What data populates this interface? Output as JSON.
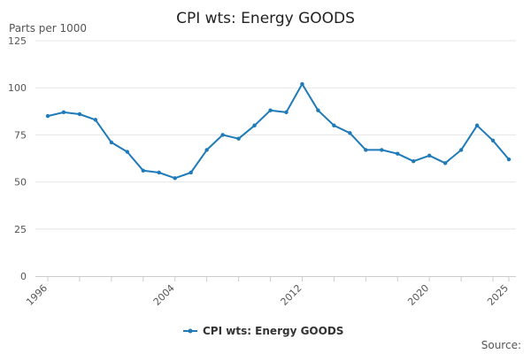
{
  "chart_data": {
    "type": "line",
    "title": "CPI wts: Energy GOODS",
    "ylabel": "Parts per 1000",
    "xlabel": "",
    "ylim": [
      0,
      125
    ],
    "yticks": [
      0,
      25,
      50,
      75,
      100,
      125
    ],
    "xlim": [
      1996,
      2025
    ],
    "xtick_labels": [
      1996,
      2004,
      2012,
      2020,
      2025
    ],
    "grid": true,
    "legend_position": "bottom",
    "series": [
      {
        "name": "CPI wts: Energy GOODS",
        "color": "#1f7ab8",
        "x": [
          1996,
          1997,
          1998,
          1999,
          2000,
          2001,
          2002,
          2003,
          2004,
          2005,
          2006,
          2007,
          2008,
          2009,
          2010,
          2011,
          2012,
          2013,
          2014,
          2015,
          2016,
          2017,
          2018,
          2019,
          2020,
          2021,
          2022,
          2023,
          2024,
          2025
        ],
        "values": [
          85,
          87,
          86,
          83,
          71,
          66,
          56,
          55,
          52,
          55,
          67,
          75,
          73,
          80,
          88,
          87,
          102,
          88,
          80,
          76,
          67,
          67,
          65,
          61,
          64,
          60,
          67,
          80,
          72,
          62
        ]
      }
    ],
    "source_label": "Source:"
  }
}
